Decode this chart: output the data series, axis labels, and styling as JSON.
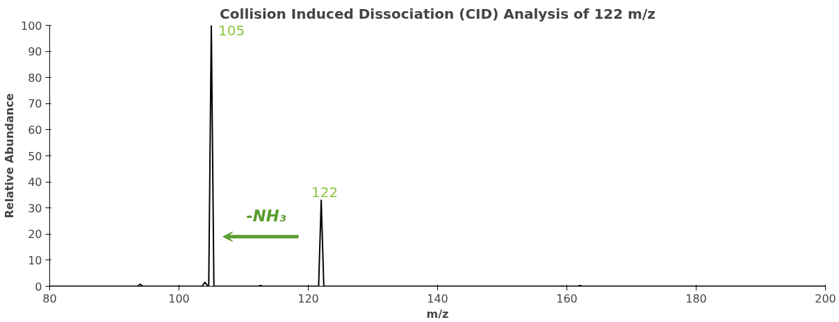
{
  "chart_data": {
    "type": "line",
    "title": "Collision Induced Dissociation (CID) Analysis of 122 m/z",
    "xlabel": "m/z",
    "ylabel": "Relative Abundance",
    "x": [
      80,
      93.6,
      94,
      94.4,
      103.6,
      104,
      104.4,
      104.6,
      105,
      105.4,
      112.3,
      112.6,
      112.9,
      121.6,
      122,
      122.4,
      161.7,
      162,
      162.3,
      200
    ],
    "series": [
      {
        "color": "#000000",
        "values": [
          0,
          0,
          0.8,
          0,
          0,
          1.5,
          0.3,
          0,
          100,
          0,
          0,
          0.3,
          0,
          0,
          33,
          0,
          0,
          0.3,
          0,
          0
        ]
      }
    ],
    "xlim": [
      80,
      200
    ],
    "xticks": [
      80,
      100,
      120,
      140,
      160,
      180,
      200
    ],
    "ylim": [
      0,
      100
    ],
    "yticks": [
      0,
      10,
      20,
      30,
      40,
      50,
      60,
      70,
      80,
      90,
      100
    ],
    "grid": false,
    "marker": "none",
    "line_style": "solid",
    "annotations": [
      {
        "text": "105",
        "x": 105,
        "y": 100
      },
      {
        "text": "122",
        "x": 122,
        "y": 33
      },
      "-NH₃"
    ]
  }
}
